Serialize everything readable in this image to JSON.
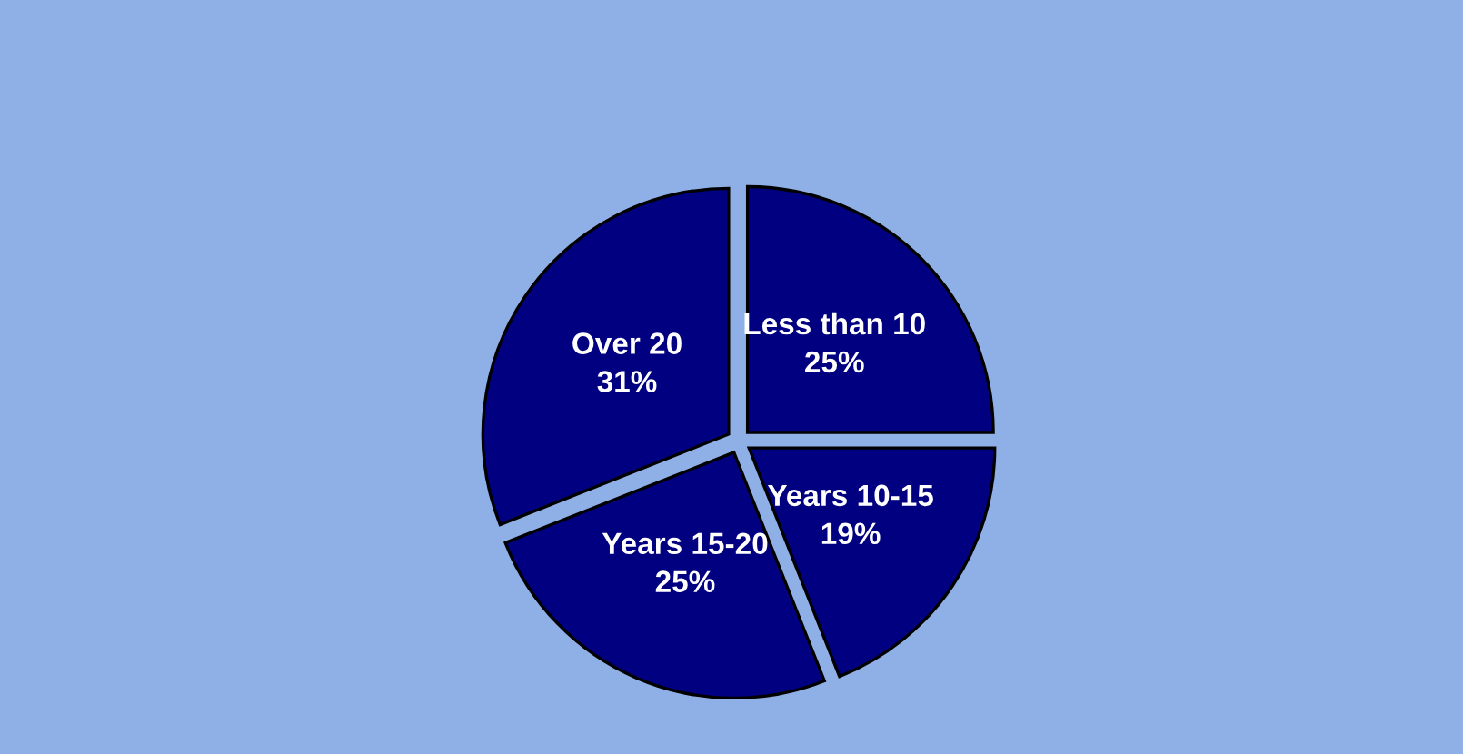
{
  "chart_data": {
    "type": "pie",
    "categories": [
      "Less than 10",
      "Years 10-15",
      "Years 15-20",
      "Over 20"
    ],
    "values": [
      25,
      19,
      25,
      31
    ],
    "colors": [
      "#000080",
      "#000080",
      "#000080",
      "#000080"
    ],
    "value_labels": [
      "25%",
      "19%",
      "25%",
      "31%"
    ]
  }
}
